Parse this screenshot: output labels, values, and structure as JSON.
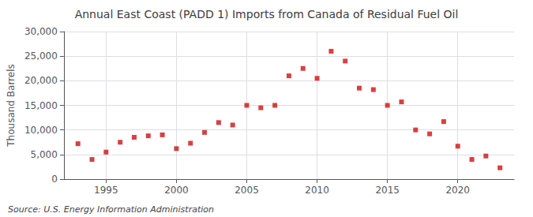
{
  "chart_data": {
    "type": "scatter",
    "title": "Annual East Coast (PADD 1) Imports from Canada of Residual Fuel Oil",
    "ylabel": "Thousand Barrels",
    "annotations": [
      "Source: U.S. Energy Information Administration"
    ],
    "x": [
      1993,
      1994,
      1995,
      1996,
      1997,
      1998,
      1999,
      2000,
      2001,
      2002,
      2003,
      2004,
      2005,
      2006,
      2007,
      2008,
      2009,
      2010,
      2011,
      2012,
      2013,
      2014,
      2015,
      2016,
      2017,
      2018,
      2019,
      2020,
      2021,
      2022,
      2023
    ],
    "values": [
      7200,
      4000,
      5500,
      7500,
      8500,
      8800,
      9000,
      6200,
      7300,
      9500,
      11500,
      11000,
      15000,
      14500,
      15000,
      21000,
      22500,
      20500,
      26000,
      24000,
      18500,
      18200,
      15000,
      15700,
      10000,
      9200,
      11700,
      6700,
      4000,
      4700,
      2300
    ],
    "color": "#cc1111",
    "marker": "square",
    "xlim": [
      1992,
      2024
    ],
    "xticks": [
      1995,
      2000,
      2005,
      2010,
      2015,
      2020
    ],
    "ylim": [
      0,
      30000
    ],
    "yticks": [
      0,
      {
        "value": 5000,
        "label": "5,000"
      },
      {
        "value": 10000,
        "label": "10,000"
      },
      {
        "value": 15000,
        "label": "15,000"
      },
      {
        "value": 20000,
        "label": "20,000"
      },
      {
        "value": 25000,
        "label": "25,000"
      },
      {
        "value": 30000,
        "label": "30,000"
      }
    ],
    "grid": true
  }
}
